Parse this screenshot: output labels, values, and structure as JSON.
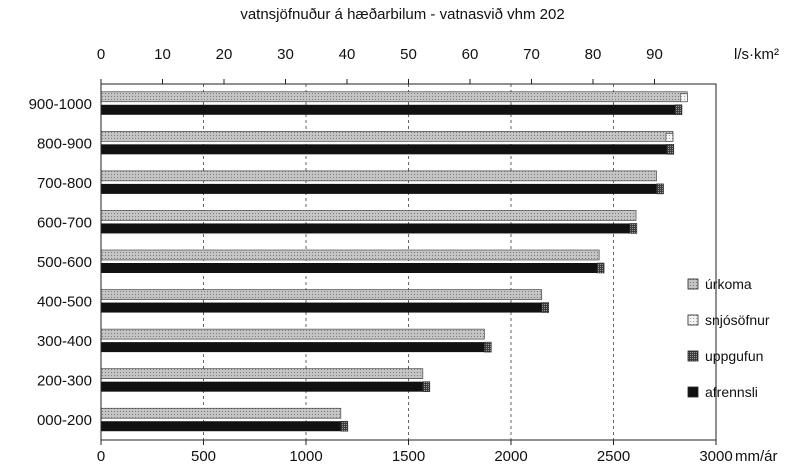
{
  "chart_data": {
    "type": "bar",
    "orientation": "horizontal",
    "title": "vatnsjöfnuður á hæðarbilum - vatnasvið vhm 202",
    "categories": [
      "900-1000",
      "800-900",
      "700-800",
      "600-700",
      "500-600",
      "400-500",
      "300-400",
      "200-300",
      "000-200"
    ],
    "top_axis": {
      "unit": "l/s·km²",
      "range": [
        0,
        100
      ],
      "ticks": [
        0,
        10,
        20,
        30,
        40,
        50,
        60,
        70,
        80,
        90
      ]
    },
    "bottom_axis": {
      "unit": "mm/ár",
      "range": [
        0,
        3000
      ],
      "ticks": [
        0,
        500,
        1000,
        1500,
        2000,
        2500,
        3000
      ]
    },
    "grid": "vertical dashed",
    "legend_position": "right",
    "series": [
      {
        "name": "úrkoma",
        "color": "#b5b5b5",
        "pattern": "dotted-gray",
        "values": [
          2860,
          2790,
          2710,
          2610,
          2430,
          2150,
          1870,
          1570,
          1170
        ]
      },
      {
        "name": "snjósöfnun",
        "color": "#e2e2e2",
        "pattern": "light-dotted",
        "values": [
          2860,
          2790,
          0,
          0,
          0,
          0,
          0,
          0,
          0
        ]
      },
      {
        "name": "uppgufun",
        "color": "#555555",
        "pattern": "dark-dotted",
        "values": [
          0,
          0,
          0,
          0,
          0,
          0,
          0,
          0,
          0
        ]
      },
      {
        "name": "afrennsli",
        "color": "#111111",
        "pattern": "solid-black",
        "values": [
          2800,
          2760,
          2710,
          2580,
          2420,
          2150,
          1870,
          1570,
          1170
        ]
      }
    ],
    "legend_labels": [
      "úrkoma",
      "snjósöfnur",
      "uppgufun",
      "afrennsli"
    ]
  }
}
